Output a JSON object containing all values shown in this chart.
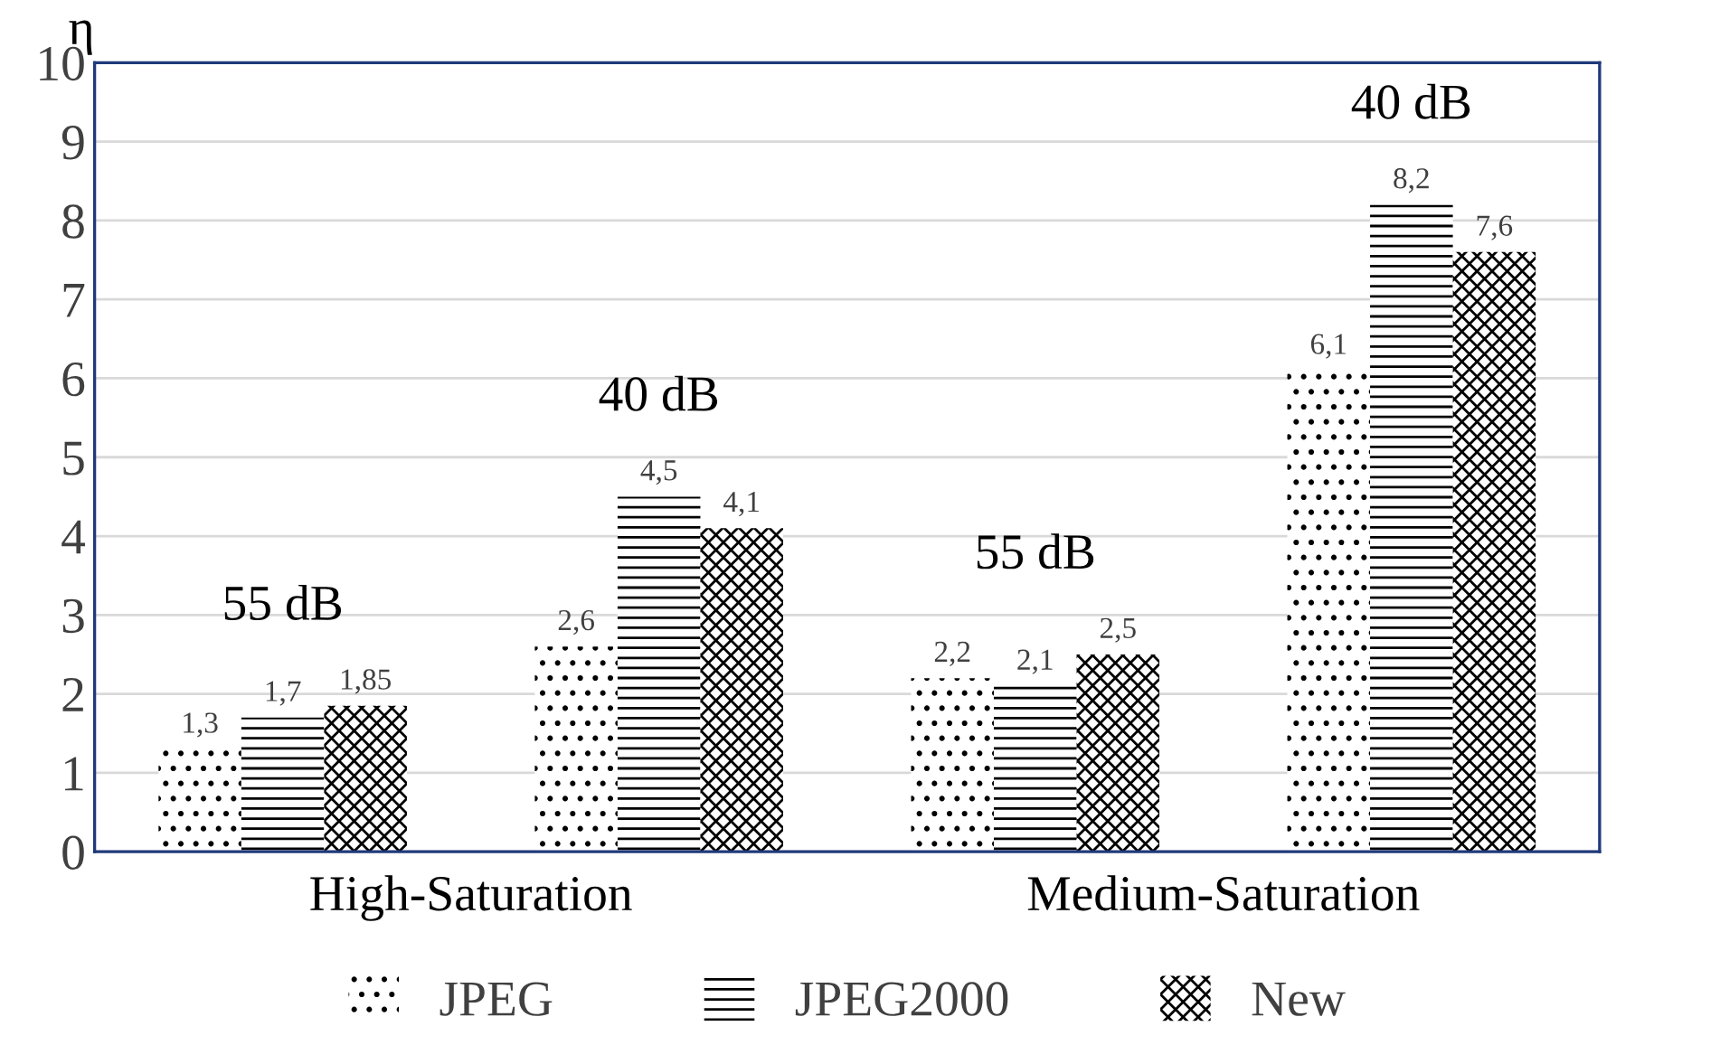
{
  "chart_data": {
    "type": "bar",
    "categories": [
      null,
      null,
      null,
      null
    ],
    "series": [
      {
        "name": "JPEG",
        "color": "#000000",
        "values": [
          1.3,
          2.6,
          2.2,
          6.1
        ],
        "value_labels": [
          "1,3",
          "2,6",
          "2,2",
          "6,1"
        ]
      },
      {
        "name": "JPEG2000",
        "color": "#000000",
        "values": [
          1.7,
          4.5,
          2.1,
          8.2
        ],
        "value_labels": [
          "1,7",
          "4,5",
          "2,1",
          "8,2"
        ]
      },
      {
        "name": "New",
        "color": "#000000",
        "values": [
          1.85,
          4.1,
          2.5,
          7.6
        ],
        "value_labels": [
          "1,85",
          "4,1",
          "2,5",
          "7,6"
        ]
      }
    ],
    "ylabel": "η",
    "ylim": [
      0,
      10
    ],
    "yticks": [
      0,
      1,
      2,
      3,
      4,
      5,
      6,
      7,
      8,
      9,
      10
    ],
    "grid": "y",
    "legend": "bottom",
    "annotations": [
      "High-Saturation",
      "Medium-Saturation",
      "55 dB",
      "40 dB",
      "55 dB",
      "40 dB"
    ]
  }
}
